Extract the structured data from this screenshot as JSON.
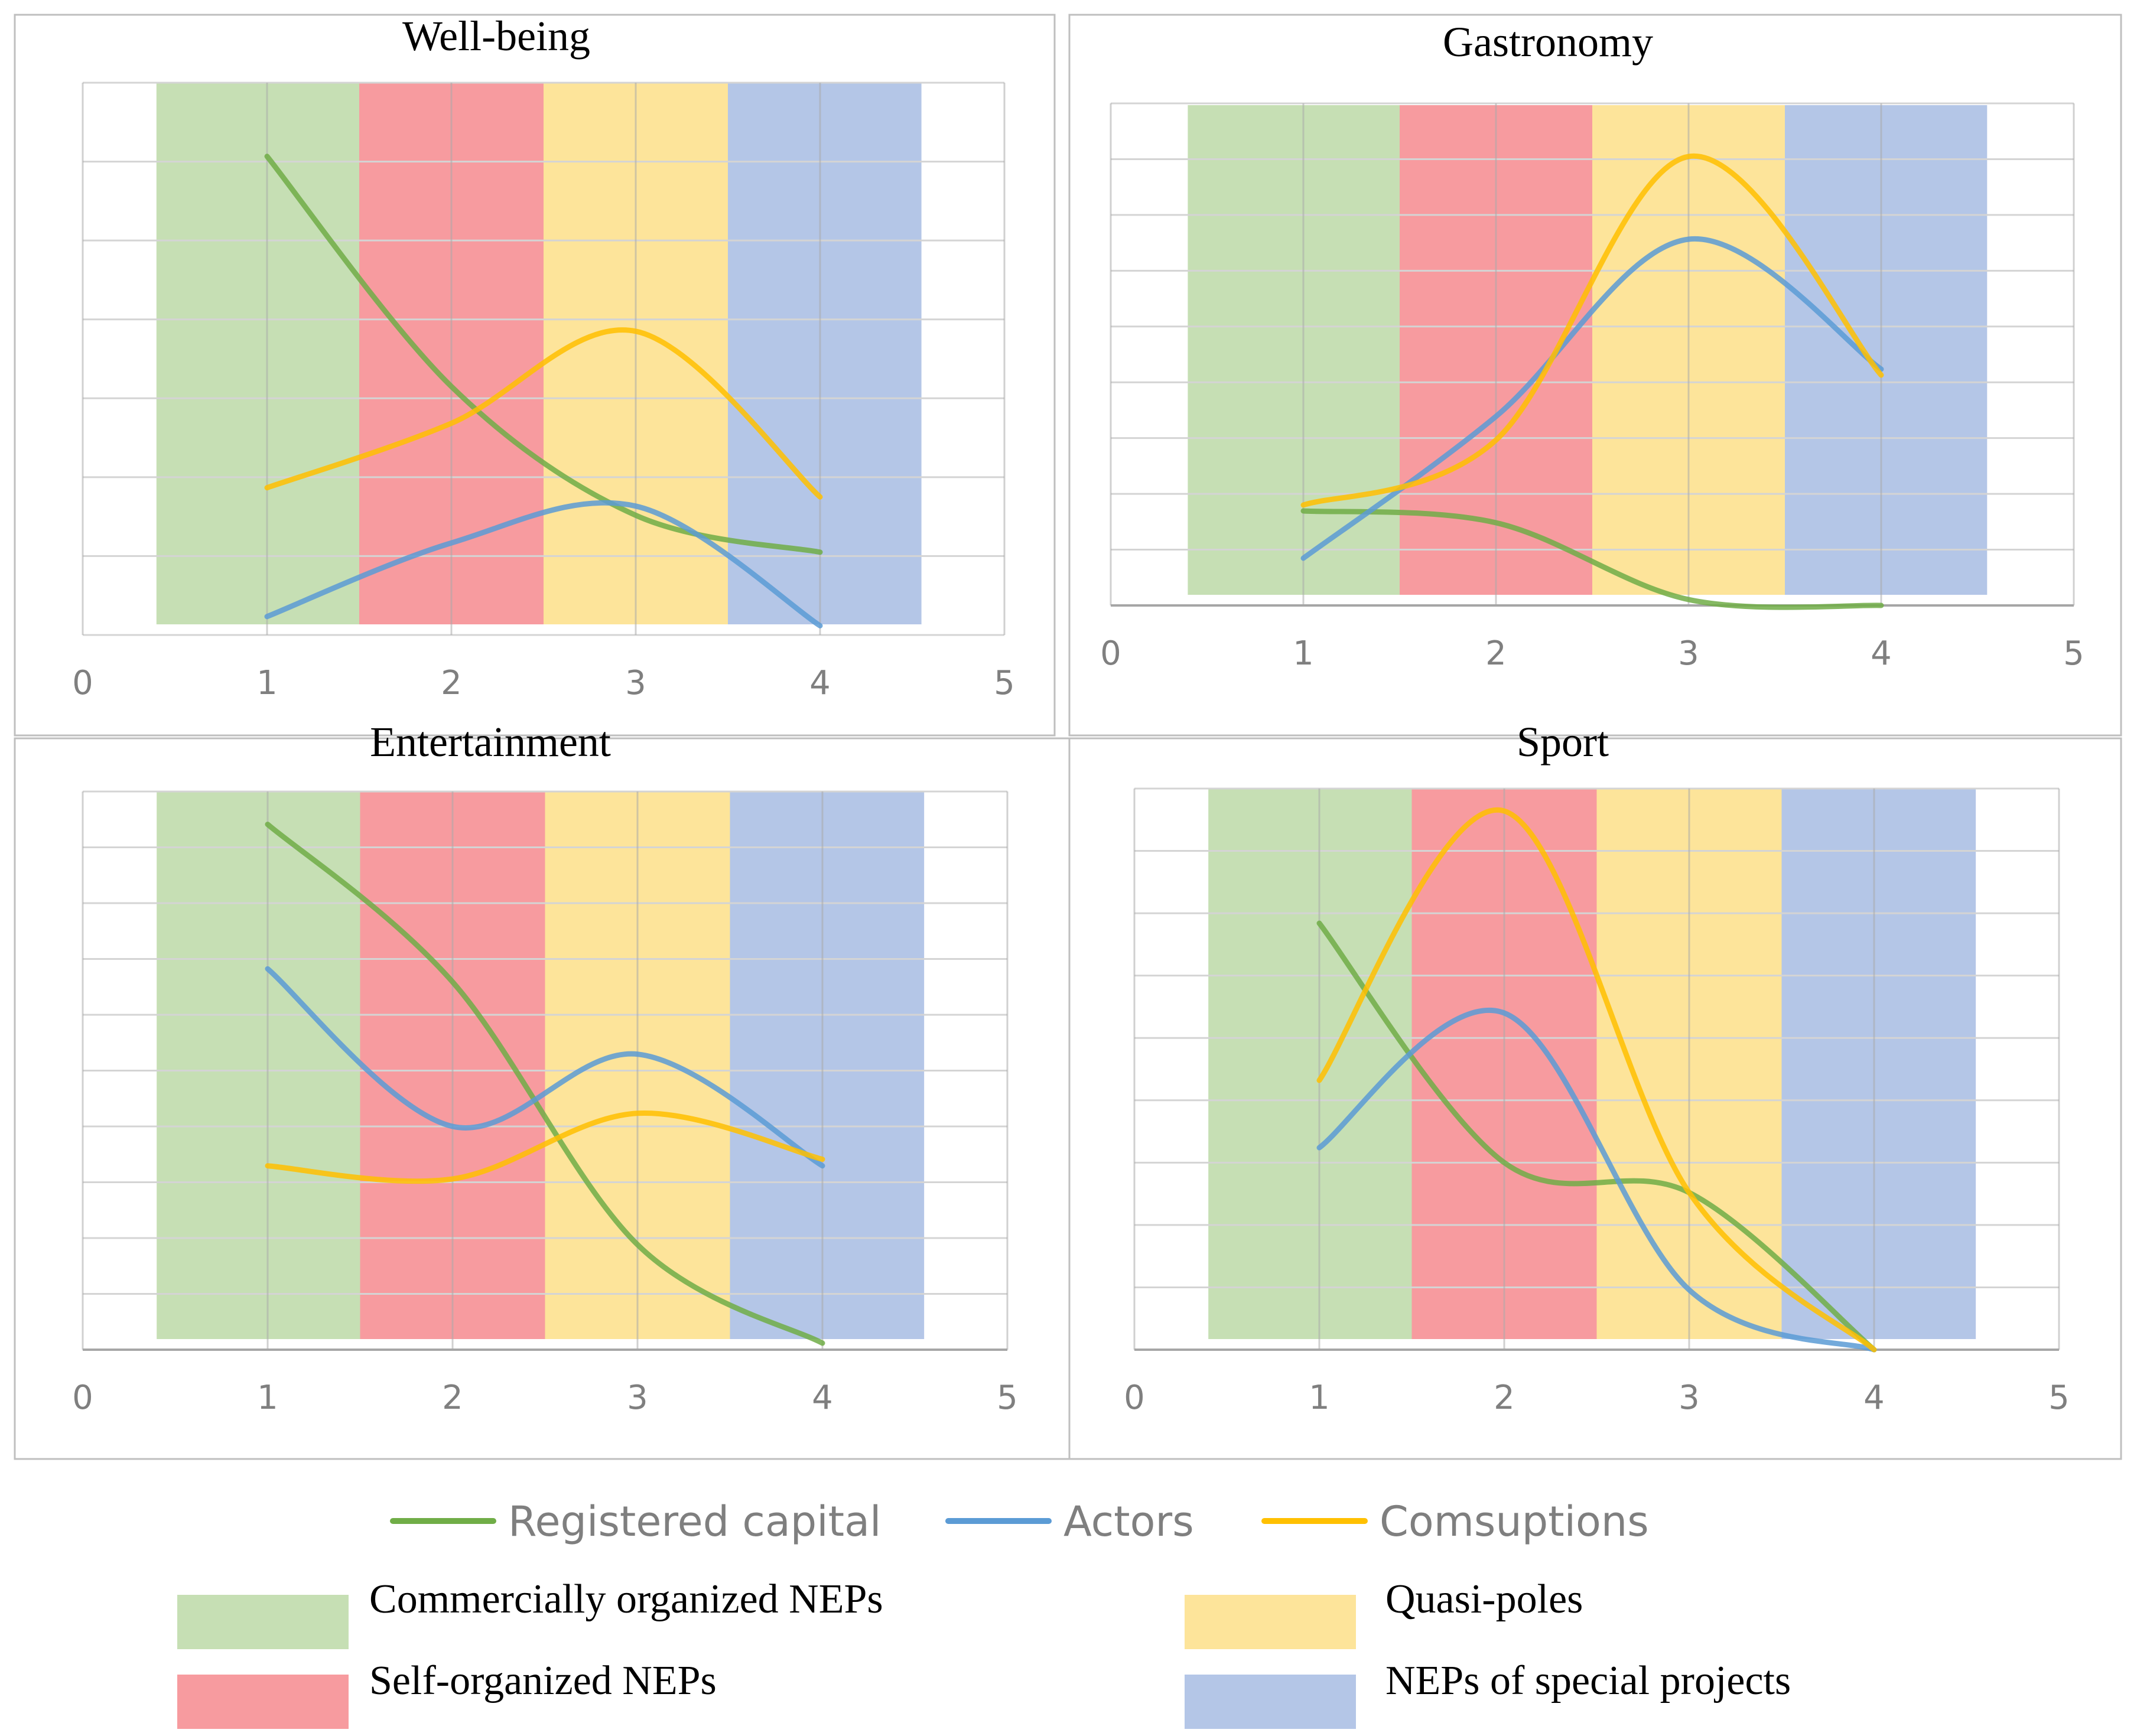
{
  "chart_data": [
    {
      "type": "line",
      "title": "Well-being",
      "xlim": [
        0,
        5
      ],
      "ylim": [
        0,
        6
      ],
      "xticks": [
        "0",
        "1",
        "2",
        "3",
        "4",
        "5"
      ],
      "x": [
        1,
        2,
        3,
        4
      ],
      "series": [
        {
          "name": "Registered capital",
          "values": [
            5.2,
            2.7,
            1.3,
            0.9
          ]
        },
        {
          "name": "Actors",
          "values": [
            0.2,
            1.0,
            1.4,
            0.1
          ]
        },
        {
          "name": "Comsuptions",
          "values": [
            1.6,
            2.3,
            3.3,
            1.5
          ]
        }
      ]
    },
    {
      "type": "line",
      "title": "Gastronomy",
      "xlim": [
        0,
        5
      ],
      "ylim": [
        0,
        8.5
      ],
      "xticks": [
        "0",
        "1",
        "2",
        "3",
        "4",
        "5"
      ],
      "x": [
        1,
        2,
        3,
        4
      ],
      "series": [
        {
          "name": "Registered capital",
          "values": [
            1.6,
            1.4,
            0.1,
            0.0
          ]
        },
        {
          "name": "Actors",
          "values": [
            0.8,
            3.2,
            6.2,
            4.0
          ]
        },
        {
          "name": "Comsuptions",
          "values": [
            1.7,
            2.8,
            7.6,
            3.9
          ]
        }
      ]
    },
    {
      "type": "line",
      "title": "Entertainment",
      "xlim": [
        0,
        5
      ],
      "ylim": [
        0,
        8.5
      ],
      "xticks": [
        "0",
        "1",
        "2",
        "3",
        "4",
        "5"
      ],
      "x": [
        1,
        2,
        3,
        4
      ],
      "series": [
        {
          "name": "Registered capital",
          "values": [
            8.0,
            5.6,
            1.6,
            0.1
          ]
        },
        {
          "name": "Actors",
          "values": [
            5.8,
            3.4,
            4.5,
            2.8
          ]
        },
        {
          "name": "Comsuptions",
          "values": [
            2.8,
            2.6,
            3.6,
            2.9
          ]
        }
      ]
    },
    {
      "type": "line",
      "title": "Sport",
      "xlim": [
        0,
        5
      ],
      "ylim": [
        0,
        7.5
      ],
      "xticks": [
        "0",
        "1",
        "2",
        "3",
        "4",
        "5"
      ],
      "x": [
        1,
        2,
        3,
        4
      ],
      "series": [
        {
          "name": "Registered capital",
          "values": [
            5.7,
            2.5,
            2.1,
            0.0
          ]
        },
        {
          "name": "Actors",
          "values": [
            2.7,
            4.5,
            0.8,
            0.0
          ]
        },
        {
          "name": "Comsuptions",
          "values": [
            3.6,
            7.2,
            2.1,
            0.0
          ]
        }
      ]
    }
  ],
  "bands": [
    {
      "name": "Commercially organized NEPs",
      "from": 0.4,
      "to": 1.5,
      "color": "#c6dfb4"
    },
    {
      "name": "Self-organized NEPs",
      "from": 1.5,
      "to": 2.5,
      "color": "#f79b9f"
    },
    {
      "name": "Quasi-poles",
      "from": 2.5,
      "to": 3.5,
      "color": "#fde49a"
    },
    {
      "name": "NEPs of special projects",
      "from": 3.5,
      "to": 4.55,
      "color": "#b4c6e7"
    }
  ],
  "series_colors": {
    "Registered capital": "#70ad47",
    "Actors": "#5b9bd5",
    "Comsuptions": "#ffc000"
  },
  "legend": {
    "lines": [
      "Registered capital",
      "Actors",
      "Comsuptions"
    ],
    "areas": [
      "Commercially organized NEPs",
      "Quasi-poles",
      "Self-organized NEPs",
      "NEPs of special projects"
    ]
  }
}
